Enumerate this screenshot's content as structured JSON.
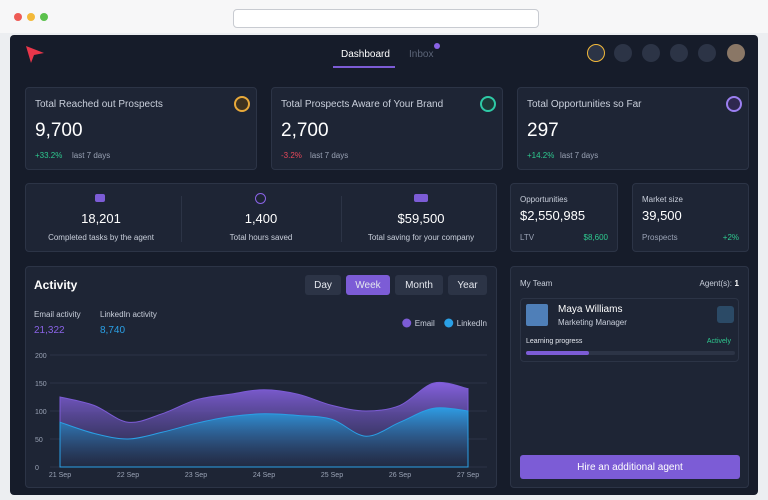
{
  "nav": {
    "tabs": [
      "Dashboard",
      "Inbox"
    ]
  },
  "kpis": [
    {
      "title": "Total Reached out Prospects",
      "value": "9,700",
      "change": "+33.2%",
      "period": "last 7 days"
    },
    {
      "title": "Total Prospects Aware of Your Brand",
      "value": "2,700",
      "change": "-3.2%",
      "period": "last 7 days"
    },
    {
      "title": "Total Opportunities so Far",
      "value": "297",
      "change": "+14.2%",
      "period": "last 7 days"
    }
  ],
  "stats": [
    {
      "value": "18,201",
      "label": "Completed tasks by the agent"
    },
    {
      "value": "1,400",
      "label": "Total hours saved"
    },
    {
      "value": "$59,500",
      "label": "Total saving for your company"
    }
  ],
  "opportunities": {
    "title": "Opportunities",
    "value": "$2,550,985",
    "sub_label": "LTV",
    "sub_value": "$8,600"
  },
  "market": {
    "title": "Market size",
    "value": "39,500",
    "sub_label": "Prospects",
    "sub_value": "+2%"
  },
  "activity": {
    "title": "Activity",
    "periods": [
      "Day",
      "Week",
      "Month",
      "Year"
    ],
    "totals": [
      {
        "label": "Email activity",
        "value": "21,322"
      },
      {
        "label": "LinkedIn activity",
        "value": "8,740"
      }
    ]
  },
  "chart_data": {
    "type": "area",
    "categories": [
      "21 Sep",
      null,
      "22 Sep",
      null,
      "23 Sep",
      null,
      "24 Sep",
      null,
      "25 Sep",
      null,
      "26 Sep",
      null,
      "27 Sep"
    ],
    "series": [
      {
        "name": "Email",
        "color": "#7c5cd6",
        "values": [
          125,
          110,
          80,
          95,
          120,
          130,
          138,
          130,
          110,
          100,
          110,
          150,
          140
        ]
      },
      {
        "name": "LinkedIn",
        "color": "#2aa0e6",
        "values": [
          80,
          60,
          50,
          62,
          78,
          90,
          95,
          92,
          85,
          55,
          80,
          105,
          100
        ]
      }
    ],
    "ylim": [
      0,
      200
    ],
    "yticks": [
      0,
      50,
      100,
      150,
      200
    ],
    "grid": true,
    "legend": "top-right"
  },
  "team": {
    "title": "My Team",
    "agents_label": "Agent(s):",
    "agents_count": "1",
    "member": {
      "name": "Maya Williams",
      "role": "Marketing Manager"
    },
    "progress_label": "Learning progress",
    "status": "Actively",
    "learning_progress": 30,
    "button": "Hire an additional agent"
  }
}
